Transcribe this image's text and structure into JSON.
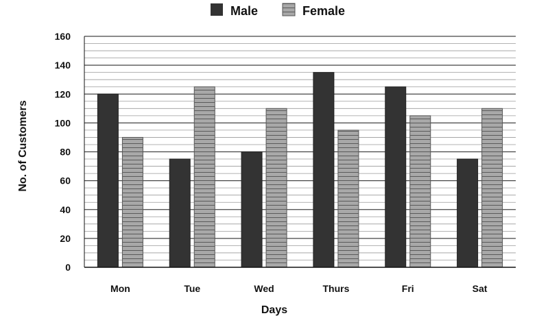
{
  "chart_data": {
    "type": "bar",
    "categories": [
      "Mon",
      "Tue",
      "Wed",
      "Thurs",
      "Fri",
      "Sat"
    ],
    "series": [
      {
        "name": "Male",
        "values": [
          120,
          75,
          80,
          135,
          125,
          75
        ],
        "color": "#333333"
      },
      {
        "name": "Female",
        "values": [
          90,
          125,
          110,
          95,
          105,
          110
        ],
        "color": "#a0a0a0"
      }
    ],
    "xlabel": "Days",
    "ylabel": "No. of Customers",
    "ylim": [
      0,
      160
    ],
    "yticks": [
      0,
      20,
      40,
      60,
      80,
      100,
      120,
      140,
      160
    ],
    "grid": true,
    "legend_position": "top-center"
  }
}
